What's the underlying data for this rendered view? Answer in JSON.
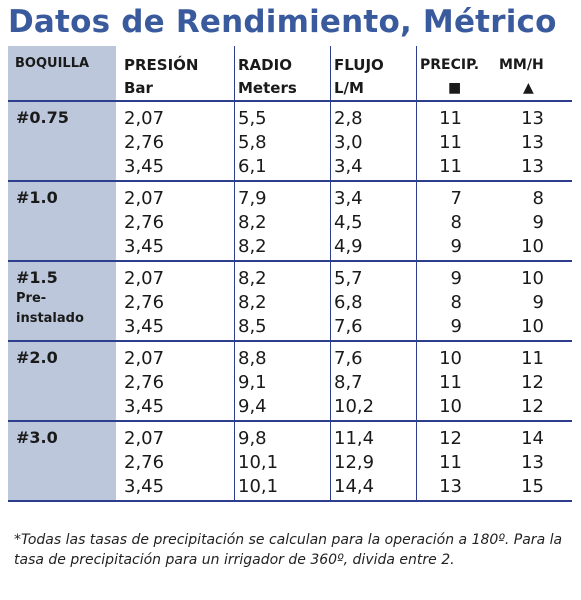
{
  "title": "Datos de Rendimiento, Métrico",
  "header": {
    "boquilla": "BOQUILLA",
    "presion": {
      "l1": "PRESIÓN",
      "l2": "Bar"
    },
    "radio": {
      "l1": "RADIO",
      "l2": "Meters"
    },
    "flujo": {
      "l1": "FLUJO",
      "l2": "L/M"
    },
    "precip": {
      "l1": "PRECIP.",
      "square": "■"
    },
    "mmh": {
      "l1": "MM/H",
      "triangle": "▲"
    }
  },
  "groups": [
    {
      "nozzle": "#0.75",
      "sub": "",
      "rows": [
        {
          "presion": "2,07",
          "radio": "5,5",
          "flujo": "2,8",
          "sq": "11",
          "tri": "13"
        },
        {
          "presion": "2,76",
          "radio": "5,8",
          "flujo": "3,0",
          "sq": "11",
          "tri": "13"
        },
        {
          "presion": "3,45",
          "radio": "6,1",
          "flujo": "3,4",
          "sq": "11",
          "tri": "13"
        }
      ]
    },
    {
      "nozzle": "#1.0",
      "sub": "",
      "rows": [
        {
          "presion": "2,07",
          "radio": "7,9",
          "flujo": "3,4",
          "sq": "7",
          "tri": "8"
        },
        {
          "presion": "2,76",
          "radio": "8,2",
          "flujo": "4,5",
          "sq": "8",
          "tri": "9"
        },
        {
          "presion": "3,45",
          "radio": "8,2",
          "flujo": "4,9",
          "sq": "9",
          "tri": "10"
        }
      ]
    },
    {
      "nozzle": "#1.5",
      "sub": "Pre- instalado",
      "rows": [
        {
          "presion": "2,07",
          "radio": "8,2",
          "flujo": "5,7",
          "sq": "9",
          "tri": "10"
        },
        {
          "presion": "2,76",
          "radio": "8,2",
          "flujo": "6,8",
          "sq": "8",
          "tri": "9"
        },
        {
          "presion": "3,45",
          "radio": "8,5",
          "flujo": "7,6",
          "sq": "9",
          "tri": "10"
        }
      ]
    },
    {
      "nozzle": "#2.0",
      "sub": "",
      "rows": [
        {
          "presion": "2,07",
          "radio": "8,8",
          "flujo": "7,6",
          "sq": "10",
          "tri": "11"
        },
        {
          "presion": "2,76",
          "radio": "9,1",
          "flujo": "8,7",
          "sq": "11",
          "tri": "12"
        },
        {
          "presion": "3,45",
          "radio": "9,4",
          "flujo": "10,2",
          "sq": "10",
          "tri": "12"
        }
      ]
    },
    {
      "nozzle": "#3.0",
      "sub": "",
      "rows": [
        {
          "presion": "2,07",
          "radio": "9,8",
          "flujo": "11,4",
          "sq": "12",
          "tri": "14"
        },
        {
          "presion": "2,76",
          "radio": "10,1",
          "flujo": "12,9",
          "sq": "11",
          "tri": "13"
        },
        {
          "presion": "3,45",
          "radio": "10,1",
          "flujo": "14,4",
          "sq": "13",
          "tri": "15"
        }
      ]
    }
  ],
  "footnote": "*Todas las tasas de precipitación se calculan para la operación a 180º. Para la tasa de precipitación para un irrigador de 360º, divida entre 2."
}
